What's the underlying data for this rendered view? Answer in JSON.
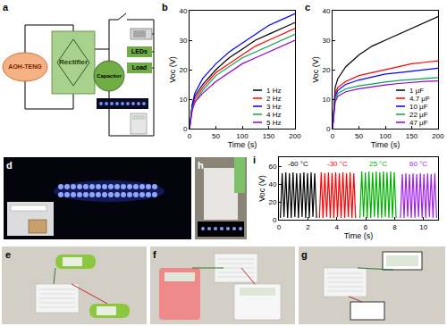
{
  "panel_labels": [
    "a",
    "b",
    "c",
    "d",
    "e",
    "f",
    "g",
    "h",
    "i"
  ],
  "diagram": {
    "nodes": {
      "source": "AOH-TENG",
      "rectifier": "Rectifier",
      "capacitor": "Capacitor",
      "leds": "LEDs",
      "load": "Load"
    }
  },
  "chart_data": [
    {
      "type": "line",
      "x_label": "Time (s)",
      "y_label": "Voc (V)",
      "x": [
        0,
        5,
        10,
        25,
        50,
        75,
        100,
        125,
        150,
        175,
        200
      ],
      "series": [
        {
          "name": "1 Hz",
          "color": "#000000",
          "values": [
            0,
            8,
            11,
            15,
            20,
            24,
            27,
            30,
            32,
            34,
            36
          ]
        },
        {
          "name": "2 Hz",
          "color": "#ff0000",
          "values": [
            0,
            7,
            10,
            14,
            19,
            22,
            25,
            28,
            30,
            32,
            34
          ]
        },
        {
          "name": "3 Hz",
          "color": "#0000ff",
          "values": [
            0,
            8,
            12,
            17,
            22,
            26,
            29,
            32,
            35,
            37,
            39
          ]
        },
        {
          "name": "4 Hz",
          "color": "#00a651",
          "values": [
            0,
            7,
            9,
            13,
            18,
            21,
            24,
            26,
            28,
            30,
            32
          ]
        },
        {
          "name": "5 Hz",
          "color": "#9400d3",
          "values": [
            0,
            6,
            9,
            12,
            16,
            19,
            22,
            24,
            26,
            28,
            30
          ]
        }
      ],
      "xlim": [
        0,
        200
      ],
      "xticks": [
        0,
        50,
        100,
        150,
        200
      ],
      "ylim": [
        0,
        40
      ],
      "yticks": [
        0,
        10,
        20,
        30,
        40
      ],
      "legend": "bottom right"
    },
    {
      "type": "line",
      "x_label": "Time (s)",
      "y_label": "Voc (V)",
      "x": [
        0,
        5,
        10,
        25,
        50,
        75,
        100,
        125,
        150,
        175,
        200
      ],
      "series": [
        {
          "name": "1 μF",
          "color": "#000000",
          "values": [
            0,
            14,
            17,
            21,
            25,
            28,
            30,
            32,
            34,
            36,
            38
          ]
        },
        {
          "name": "4.7 μF",
          "color": "#ff0000",
          "values": [
            0,
            12,
            14,
            16,
            18,
            19,
            20,
            21,
            22,
            22.5,
            23
          ]
        },
        {
          "name": "10 μF",
          "color": "#0000ff",
          "values": [
            0,
            11,
            13,
            15,
            16.5,
            17.5,
            18.5,
            19,
            19.5,
            20,
            20.5
          ]
        },
        {
          "name": "22 μF",
          "color": "#00a651",
          "values": [
            0,
            10,
            12,
            13.5,
            14.5,
            15.2,
            15.8,
            16.3,
            16.7,
            17,
            17.3
          ]
        },
        {
          "name": "47 μF",
          "color": "#9400d3",
          "values": [
            0,
            9,
            11,
            12.5,
            13.5,
            14.2,
            14.8,
            15.3,
            15.7,
            16,
            16.2
          ]
        }
      ],
      "xlim": [
        0,
        200
      ],
      "xticks": [
        0,
        50,
        100,
        150,
        200
      ],
      "ylim": [
        0,
        40
      ],
      "yticks": [
        0,
        10,
        20,
        30,
        40
      ],
      "legend": "bottom right"
    },
    {
      "type": "line",
      "x_label": "Time (s)",
      "y_label": "Voc (V)",
      "series": [
        {
          "name": "-60 °C",
          "color": "#000000",
          "x": [
            0.1,
            0.225,
            0.35,
            0.475,
            0.6,
            0.725,
            0.85,
            0.975,
            1.1,
            1.225,
            1.35,
            1.475,
            1.6,
            1.725,
            1.85,
            1.975,
            2.1,
            2.225,
            2.35,
            2.475,
            2.6
          ],
          "values": [
            2,
            52,
            3,
            53,
            2,
            52,
            2,
            53,
            3,
            52,
            2,
            52,
            3,
            53,
            2,
            52,
            2,
            53,
            3,
            52,
            2
          ]
        },
        {
          "name": "-30 °C",
          "color": "#ff0000",
          "x": [
            2.8,
            2.925,
            3.05,
            3.175,
            3.3,
            3.425,
            3.55,
            3.675,
            3.8,
            3.925,
            4.05,
            4.175,
            4.3,
            4.425,
            4.55,
            4.675,
            4.8,
            4.925,
            5.05,
            5.175,
            5.3
          ],
          "values": [
            2,
            53,
            2,
            52,
            3,
            53,
            2,
            52,
            2,
            53,
            3,
            52,
            2,
            53,
            2,
            52,
            3,
            53,
            2,
            52,
            2
          ]
        },
        {
          "name": "25 °C",
          "color": "#00b000",
          "x": [
            5.6,
            5.725,
            5.85,
            5.975,
            6.1,
            6.225,
            6.35,
            6.475,
            6.6,
            6.725,
            6.85,
            6.975,
            7.1,
            7.225,
            7.35,
            7.475,
            7.6,
            7.725,
            7.85,
            7.975,
            8.1
          ],
          "values": [
            2,
            54,
            3,
            53,
            2,
            54,
            2,
            53,
            3,
            54,
            2,
            53,
            2,
            54,
            3,
            53,
            2,
            54,
            2,
            53,
            2
          ]
        },
        {
          "name": "60 °C",
          "color": "#a020f0",
          "x": [
            8.4,
            8.525,
            8.65,
            8.775,
            8.9,
            9.025,
            9.15,
            9.275,
            9.4,
            9.525,
            9.65,
            9.775,
            9.9,
            10.025,
            10.15,
            10.275,
            10.4,
            10.525,
            10.65,
            10.775,
            10.9
          ],
          "values": [
            2,
            51,
            2,
            52,
            3,
            51,
            2,
            52,
            2,
            51,
            3,
            52,
            2,
            51,
            2,
            52,
            3,
            51,
            2,
            52,
            2
          ]
        }
      ],
      "xlim": [
        0,
        11
      ],
      "xticks": [
        0,
        2,
        4,
        6,
        8,
        10
      ],
      "ylim": [
        0,
        70
      ],
      "yticks": [
        0,
        20,
        40,
        60
      ]
    }
  ]
}
